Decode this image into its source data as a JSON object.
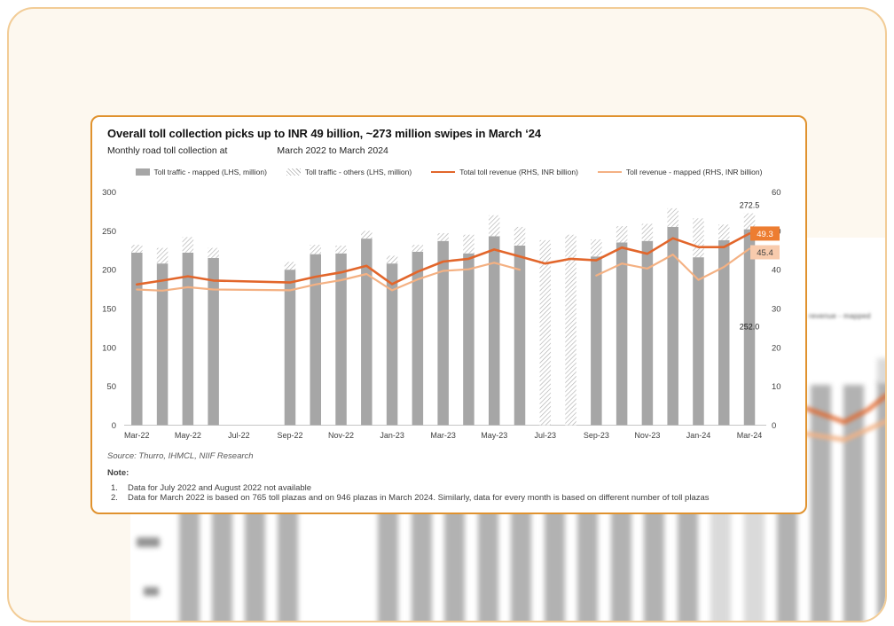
{
  "colors": {
    "bar_gray": "#A6A6A6",
    "hatch_gray": "#B0B0B0",
    "total_revenue_line": "#E2662B",
    "mapped_revenue_line": "#F4B183",
    "label_box_dark": "#ED7D31",
    "label_box_light": "#F8CBAD",
    "card_border": "#E0922E",
    "page_border": "#F2CC96",
    "page_background": "#FDF8EF",
    "axis_text": "#404040",
    "axis_line": "#C6C6C6"
  },
  "page": {
    "background_blur": {
      "legend_fragment": "revenue - mapped"
    }
  },
  "card": {
    "title": "Overall toll collection picks up to INR 49 billion, ~273 million swipes in March ‘24",
    "subtitle_left": "Monthly road toll collection at",
    "subtitle_right": "March 2022 to March 2024",
    "legend": [
      {
        "label": "Toll traffic - mapped (LHS, million)",
        "marker": "bar-solid"
      },
      {
        "label": "Toll traffic - others (LHS, million)",
        "marker": "bar-hatched"
      },
      {
        "label": "Total toll revenue (RHS, INR billion)",
        "marker": "line-dark"
      },
      {
        "label": "Toll revenue - mapped (RHS, INR billion)",
        "marker": "line-light"
      }
    ],
    "source": "Source: Thurro, IHMCL, NIIF Research",
    "note_label": "Note:",
    "notes": [
      {
        "num": "1.",
        "text": "Data for July 2022 and August 2022 not available"
      },
      {
        "num": "2.",
        "text": "Data for March 2022 is based on 765 toll plazas and on 946 plazas in March 2024. Similarly, data for every month is based on different number of toll plazas"
      }
    ]
  },
  "chart_data": {
    "type": "combo_bar_line",
    "title": "Monthly road toll collection, March 2022 to March 2024",
    "categories": [
      "Mar-22",
      "Apr-22",
      "May-22",
      "Jun-22",
      "Jul-22",
      "Aug-22",
      "Sep-22",
      "Oct-22",
      "Nov-22",
      "Dec-22",
      "Jan-23",
      "Feb-23",
      "Mar-23",
      "Apr-23",
      "May-23",
      "Jun-23",
      "Jul-23",
      "Aug-23",
      "Sep-23",
      "Oct-23",
      "Nov-23",
      "Dec-23",
      "Jan-24",
      "Feb-24",
      "Mar-24"
    ],
    "x_tick_labels": [
      "Mar-22",
      "May-22",
      "Jul-22",
      "Sep-22",
      "Nov-22",
      "Jan-23",
      "Mar-23",
      "May-23",
      "Jul-23",
      "Sep-23",
      "Nov-23",
      "Jan-24",
      "Mar-24"
    ],
    "left_axis": {
      "units": "LHS, million",
      "ticks": [
        0,
        50,
        100,
        150,
        200,
        250,
        300
      ],
      "range": [
        0,
        300
      ]
    },
    "right_axis": {
      "units": "RHS, INR billion",
      "ticks": [
        0,
        10,
        20,
        30,
        40,
        50,
        60
      ],
      "range": [
        0,
        60
      ]
    },
    "bar_series": [
      {
        "name": "Toll traffic - mapped (LHS, million)",
        "axis": "left",
        "style": "solid-gray",
        "values": [
          222,
          208,
          222,
          215,
          null,
          null,
          200,
          220,
          221,
          240,
          208,
          223,
          237,
          221,
          243,
          231,
          0,
          0,
          217,
          235,
          237,
          255,
          216,
          238,
          252
        ]
      },
      {
        "name": "Toll traffic - others (LHS, million)",
        "axis": "left",
        "style": "hatched",
        "stacked_on": "Toll traffic - mapped (LHS, million)",
        "values": [
          10,
          20,
          20,
          13,
          null,
          null,
          10,
          12,
          10,
          10,
          10,
          9,
          10,
          24,
          27,
          24,
          238,
          245,
          22,
          21,
          22,
          24,
          50,
          20,
          20.5
        ]
      }
    ],
    "line_series": [
      {
        "name": "Total toll revenue (RHS, INR billion)",
        "axis": "right",
        "color_key": "total_revenue_line",
        "width": 2.6,
        "bridge_gaps": [
          [
            3,
            6
          ]
        ],
        "values": [
          36.2,
          37.2,
          38.3,
          37.2,
          null,
          null,
          36.7,
          38.2,
          39.3,
          41.0,
          36.3,
          39.5,
          42.1,
          42.8,
          45.2,
          43.4,
          41.6,
          42.8,
          42.4,
          45.7,
          44.1,
          48.1,
          45.8,
          45.8,
          49.3
        ]
      },
      {
        "name": "Toll revenue - mapped (RHS, INR billion)",
        "axis": "right",
        "color_key": "mapped_revenue_line",
        "width": 2.2,
        "bridge_gaps": [
          [
            3,
            6
          ]
        ],
        "values": [
          34.9,
          34.6,
          35.5,
          34.9,
          null,
          null,
          34.7,
          36.2,
          37.3,
          38.9,
          34.7,
          37.5,
          39.7,
          40.1,
          41.8,
          40.0,
          null,
          null,
          38.5,
          41.6,
          40.3,
          43.9,
          37.4,
          40.7,
          45.4
        ]
      }
    ],
    "data_labels": [
      {
        "text": "272.5",
        "category": "Mar-24",
        "refers_to": "total toll traffic (million)",
        "type": "above-bar"
      },
      {
        "text": "252.0",
        "category": "Mar-24",
        "refers_to": "mapped toll traffic (million)",
        "type": "inside-bar"
      },
      {
        "text": "49.3",
        "category": "Mar-24",
        "refers_to": "total toll revenue (INR billion)",
        "type": "box-dark"
      },
      {
        "text": "45.4",
        "category": "Mar-24",
        "refers_to": "mapped toll revenue (INR billion)",
        "type": "box-light"
      }
    ],
    "notes": "Jul-22 and Aug-22 have no data; Jul-23 and Aug-23 bars are entirely 'others' (hatched) and the mapped revenue line breaks there."
  }
}
